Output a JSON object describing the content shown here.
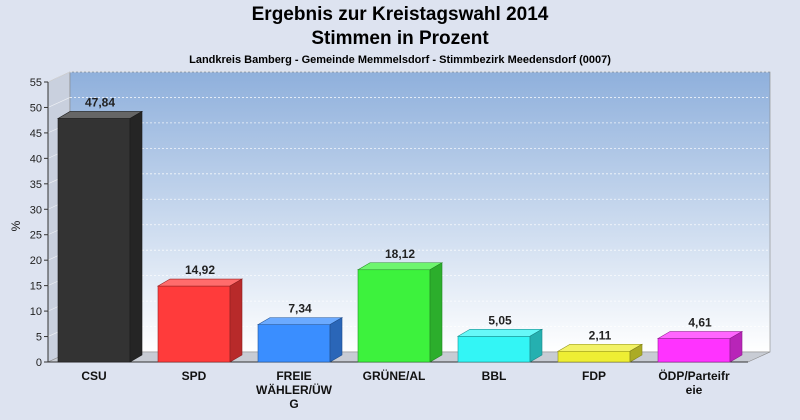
{
  "chart_data": {
    "type": "bar",
    "title": "Ergebnis zur Kreistagswahl 2014",
    "subtitle": "Stimmen in Prozent",
    "subsubtitle": "Landkreis Bamberg - Gemeinde Memmelsdorf - Stimmbezirk Meedensdorf (0007)",
    "ylabel": "%",
    "ylim": [
      0,
      55
    ],
    "yticks": [
      0,
      5,
      10,
      15,
      20,
      25,
      30,
      35,
      40,
      45,
      50,
      55
    ],
    "categories": [
      [
        "CSU"
      ],
      [
        "SPD"
      ],
      [
        "FREIE",
        "WÄHLER/ÜW",
        "G"
      ],
      [
        "GRÜNE/AL"
      ],
      [
        "BBL"
      ],
      [
        "FDP"
      ],
      [
        "ÖDP/Parteifr",
        "eie"
      ]
    ],
    "values": [
      47.84,
      14.92,
      7.34,
      18.12,
      5.05,
      2.11,
      4.61
    ],
    "value_labels": [
      "47,84",
      "14,92",
      "7,34",
      "18,12",
      "5,05",
      "2,11",
      "4,61"
    ],
    "colors": [
      "#333333",
      "#ff3b3b",
      "#3a8eff",
      "#3df23d",
      "#33f5f5",
      "#eeee33",
      "#ff33ff"
    ],
    "grid": true,
    "legend": "none"
  }
}
